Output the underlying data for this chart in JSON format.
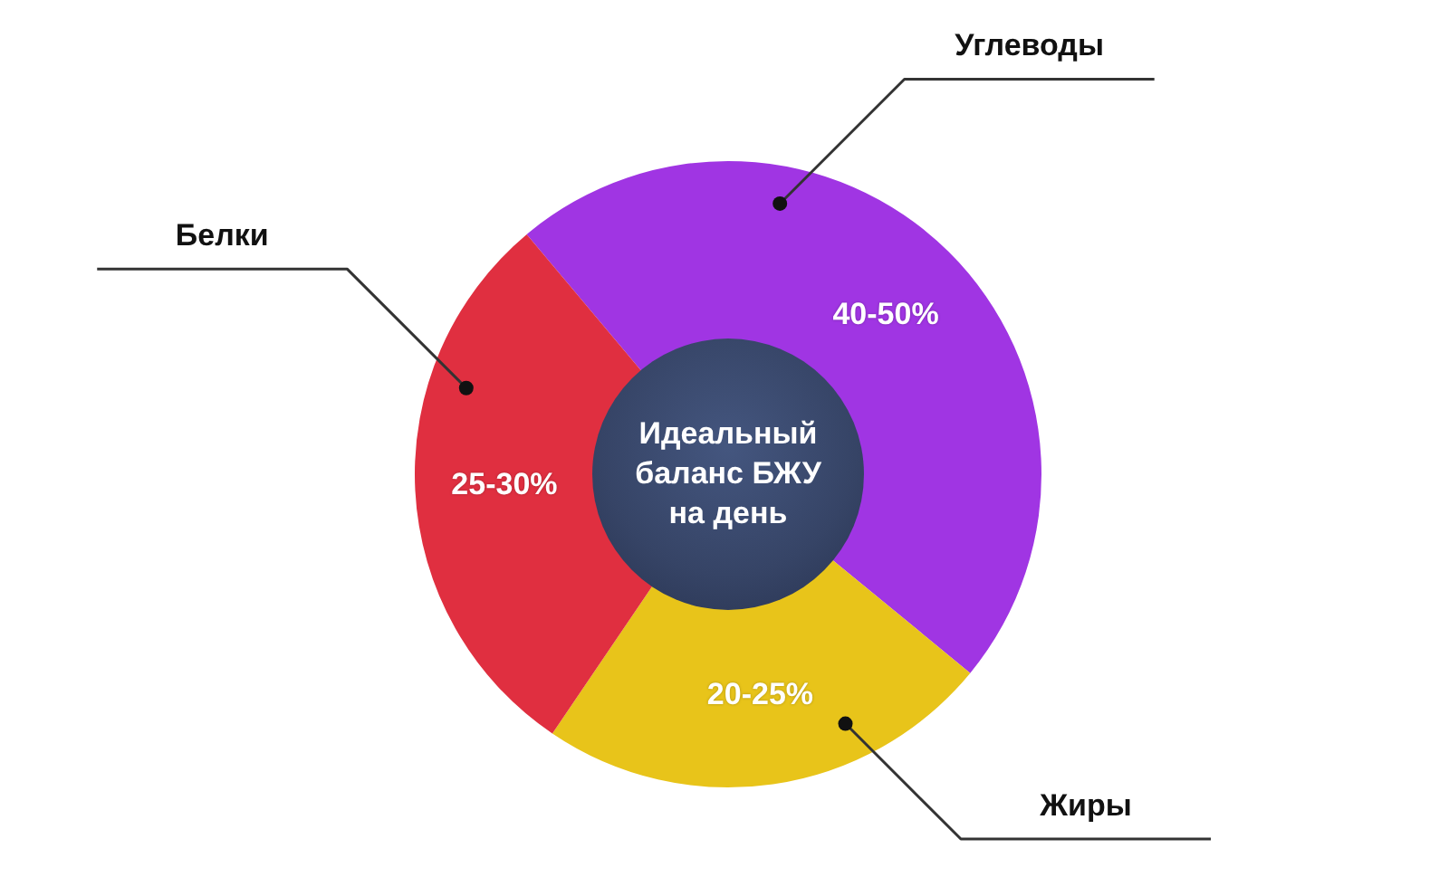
{
  "chart_data": {
    "type": "donut",
    "title": "Идеальный баланс БЖУ на день",
    "categories": [
      "Углеводы",
      "Жиры",
      "Белки"
    ],
    "values": [
      40,
      20,
      25
    ],
    "colors": [
      "#a035e3",
      "#e8c41a",
      "#e02f40"
    ],
    "value_labels": [
      "40-50%",
      "20-25%",
      "25-30%"
    ]
  }
}
